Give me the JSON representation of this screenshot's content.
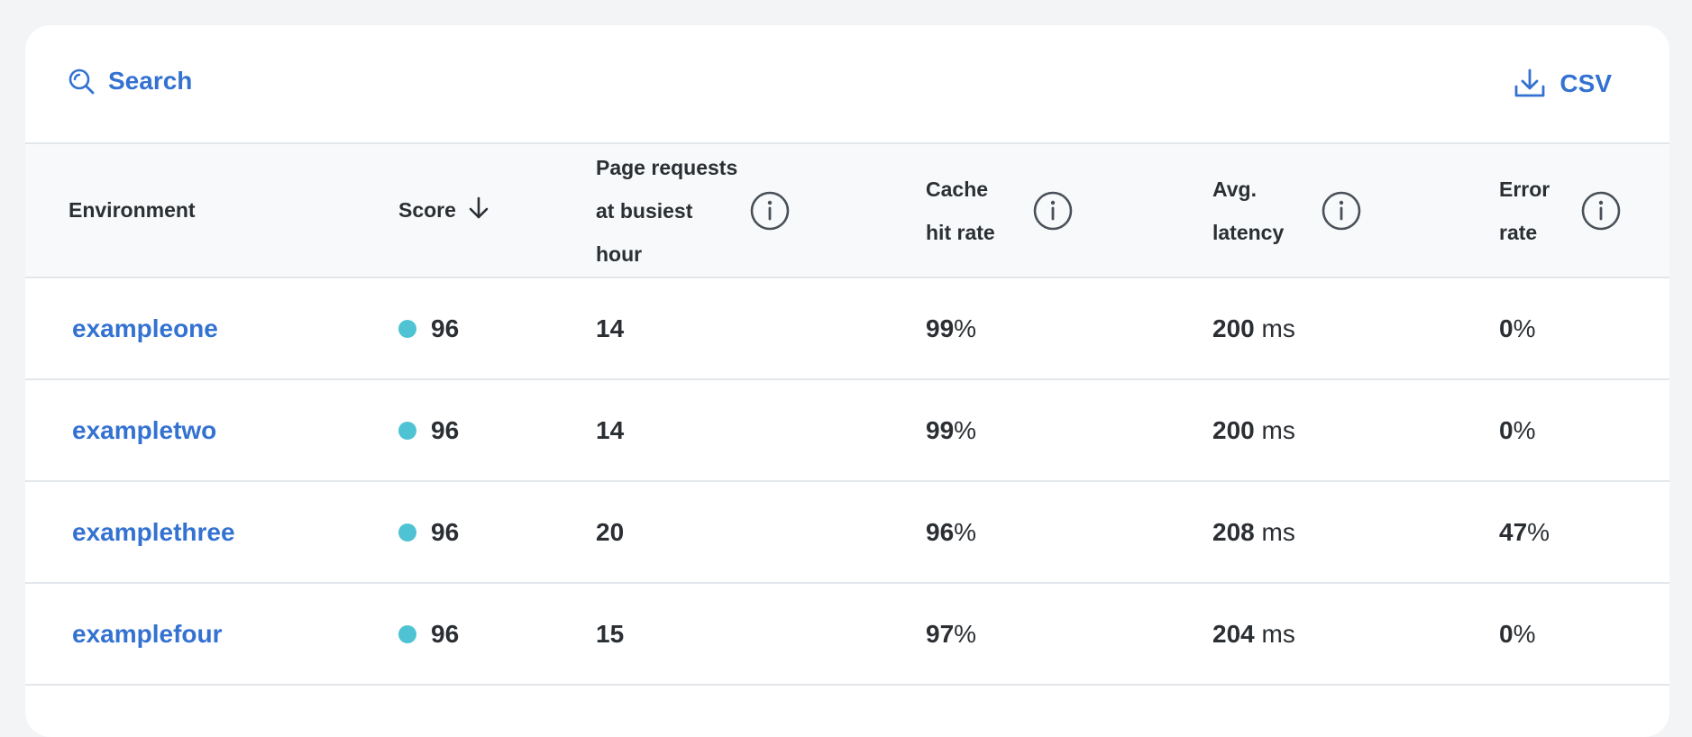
{
  "toolbar": {
    "search_label": "Search",
    "csv_label": "CSV"
  },
  "columns": {
    "environment": "Environment",
    "score": "Score",
    "page_requests": [
      "Page requests",
      "at busiest",
      "hour"
    ],
    "cache_hit_rate": [
      "Cache",
      "hit rate"
    ],
    "avg_latency": [
      "Avg.",
      "latency"
    ],
    "error_rate": [
      "Error",
      "rate"
    ]
  },
  "rows": [
    {
      "environment": "exampleone",
      "score": "96",
      "page_requests": "14",
      "cache_value": "99",
      "cache_unit": "%",
      "latency_value": "200",
      "latency_unit": "ms",
      "error_value": "0",
      "error_unit": "%"
    },
    {
      "environment": "exampletwo",
      "score": "96",
      "page_requests": "14",
      "cache_value": "99",
      "cache_unit": "%",
      "latency_value": "200",
      "latency_unit": "ms",
      "error_value": "0",
      "error_unit": "%"
    },
    {
      "environment": "examplethree",
      "score": "96",
      "page_requests": "20",
      "cache_value": "96",
      "cache_unit": "%",
      "latency_value": "208",
      "latency_unit": "ms",
      "error_value": "47",
      "error_unit": "%"
    },
    {
      "environment": "examplefour",
      "score": "96",
      "page_requests": "15",
      "cache_value": "97",
      "cache_unit": "%",
      "latency_value": "204",
      "latency_unit": "ms",
      "error_value": "0",
      "error_unit": "%"
    }
  ],
  "colors": {
    "accent": "#3472d1",
    "score_dot": "#4fc3d3",
    "header_bg": "#f7f9fa",
    "page_bg": "#f2f4f6"
  },
  "icons": {
    "search": "search-icon",
    "download": "download-icon",
    "sort": "arrow-down-icon",
    "info": "info-icon"
  }
}
